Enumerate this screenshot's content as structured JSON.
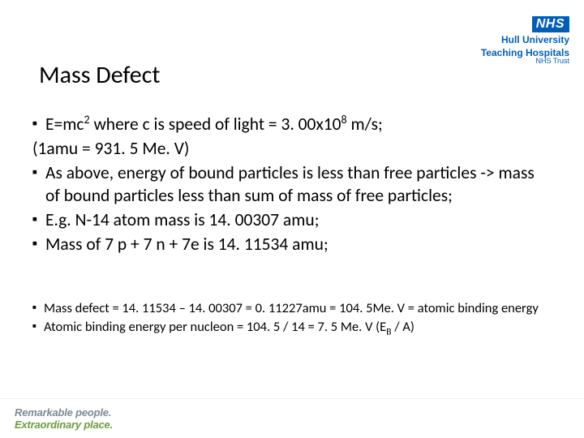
{
  "title": "Mass Defect",
  "main_bullets": [
    {
      "html": "E=mc<sup>2</sup> where c is speed of light = 3. 00x10<sup>8</sup> m/s;",
      "bulleted": true
    },
    {
      "html": "(1amu = 931. 5 Me. V) ",
      "bulleted": false
    },
    {
      "html": "As above, energy of bound particles is less than free particles -> mass of bound particles less than sum of mass of free particles;",
      "bulleted": true
    },
    {
      "html": "E.g. N-14 atom mass is 14. 00307 amu;",
      "bulleted": true
    },
    {
      "html": "Mass of 7 p + 7 n + 7e is 14. 11534 amu;",
      "bulleted": true
    }
  ],
  "sub_bullets": [
    {
      "html": "Mass defect = 14. 11534 – 14. 00307 = 0. 11227amu = 104. 5Me. V = atomic binding energy",
      "bulleted": true
    },
    {
      "html": "Atomic binding energy per nucleon = 104. 5 / 14 = 7. 5 Me. V (E<sub>B</sub> / A)",
      "bulleted": true
    }
  ],
  "logo": {
    "nhs": "NHS",
    "line1": "Hull University",
    "line2": "Teaching Hospitals",
    "line3": "NHS Trust"
  },
  "footer": {
    "line1": "Remarkable people.",
    "line2": "Extraordinary place."
  },
  "colors": {
    "nhs_blue": "#005EB8",
    "footer_grey": "#7a8a97",
    "footer_green": "#6f9a3f",
    "text": "#000000",
    "background": "#ffffff"
  },
  "bullet_char": "▪"
}
